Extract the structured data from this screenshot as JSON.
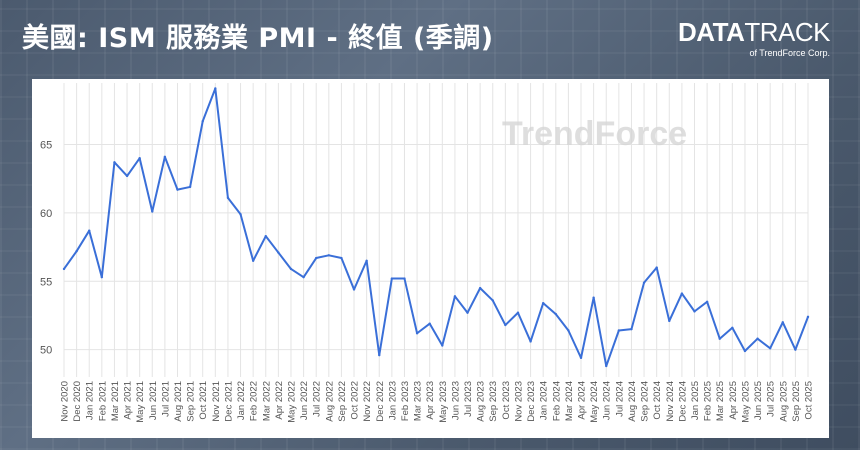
{
  "header": {
    "title": "美國: ISM 服務業 PMI - 終值 (季調)",
    "logo_part1": "DATA",
    "logo_part2": "TRACK",
    "logo_sub": "of TrendForce Corp."
  },
  "watermark": "TrendForce",
  "colors": {
    "line": "#3a6fd8",
    "grid": "#e4e4e4",
    "axis_text": "#555555",
    "watermark": "#d4d4d4"
  },
  "chart_data": {
    "type": "line",
    "title": "美國: ISM 服務業 PMI - 終值 (季調)",
    "xlabel": "",
    "ylabel": "",
    "ylim": [
      48,
      69.5
    ],
    "yticks": [
      50,
      55,
      60,
      65
    ],
    "grid": true,
    "categories": [
      "Nov 2020",
      "Dec 2020",
      "Jan 2021",
      "Feb 2021",
      "Mar 2021",
      "Apr 2021",
      "May 2021",
      "Jun 2021",
      "Jul 2021",
      "Aug 2021",
      "Sep 2021",
      "Oct 2021",
      "Nov 2021",
      "Dec 2021",
      "Jan 2022",
      "Feb 2022",
      "Mar 2022",
      "Apr 2022",
      "May 2022",
      "Jun 2022",
      "Jul 2022",
      "Aug 2022",
      "Sep 2022",
      "Oct 2022",
      "Nov 2022",
      "Dec 2022",
      "Jan 2023",
      "Feb 2023",
      "Mar 2023",
      "Apr 2023",
      "May 2023",
      "Jun 2023",
      "Jul 2023",
      "Aug 2023",
      "Sep 2023",
      "Oct 2023",
      "Nov 2023",
      "Dec 2023",
      "Jan 2024",
      "Feb 2024",
      "Mar 2024",
      "Apr 2024",
      "May 2024",
      "Jun 2024",
      "Jul 2024",
      "Aug 2024",
      "Sep 2024",
      "Oct 2024",
      "Nov 2024",
      "Dec 2024",
      "Jan 2025",
      "Feb 2025",
      "Mar 2025",
      "Apr 2025",
      "May 2025",
      "Jun 2025",
      "Jul 2025",
      "Aug 2025",
      "Sep 2025",
      "Oct 2025"
    ],
    "series": [
      {
        "values": [
          55.9,
          57.2,
          58.7,
          55.3,
          63.7,
          62.7,
          64.0,
          60.1,
          64.1,
          61.7,
          61.9,
          66.7,
          69.1,
          61.1,
          59.9,
          56.5,
          58.3,
          57.1,
          55.9,
          55.3,
          56.7,
          56.9,
          56.7,
          54.4,
          56.5,
          49.6,
          55.2,
          55.2,
          51.2,
          51.9,
          50.3,
          53.9,
          52.7,
          54.5,
          53.6,
          51.8,
          52.7,
          50.6,
          53.4,
          52.6,
          51.4,
          49.4,
          53.8,
          48.8,
          51.4,
          51.5,
          54.9,
          56.0,
          52.1,
          54.1,
          52.8,
          53.5,
          50.8,
          51.6,
          49.9,
          50.8,
          50.1,
          52.0,
          50.0,
          52.4
        ]
      }
    ]
  }
}
